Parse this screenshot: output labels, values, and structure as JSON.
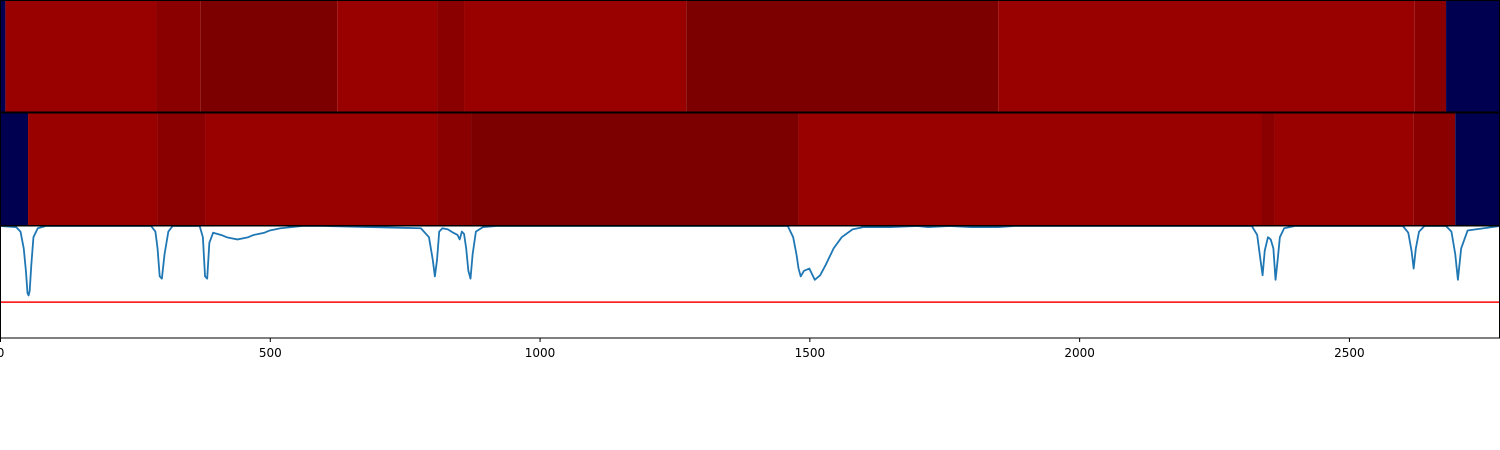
{
  "chart_data": [
    {
      "type": "heatmap",
      "panel": "top",
      "xlim": [
        0,
        2780
      ],
      "bands": [
        {
          "start": 0,
          "end": 10,
          "level": "blue"
        },
        {
          "start": 10,
          "end": 290,
          "level": "red"
        },
        {
          "start": 290,
          "end": 372,
          "level": "mid"
        },
        {
          "start": 372,
          "end": 625,
          "level": "dark"
        },
        {
          "start": 625,
          "end": 810,
          "level": "red"
        },
        {
          "start": 810,
          "end": 860,
          "level": "mid"
        },
        {
          "start": 860,
          "end": 1272,
          "level": "red"
        },
        {
          "start": 1272,
          "end": 1850,
          "level": "dark"
        },
        {
          "start": 1850,
          "end": 2622,
          "level": "red"
        },
        {
          "start": 2622,
          "end": 2680,
          "level": "mid"
        },
        {
          "start": 2680,
          "end": 2780,
          "level": "blue"
        }
      ]
    },
    {
      "type": "heatmap",
      "panel": "middle",
      "xlim": [
        0,
        2780
      ],
      "bands": [
        {
          "start": 0,
          "end": 52,
          "level": "blue"
        },
        {
          "start": 52,
          "end": 292,
          "level": "red"
        },
        {
          "start": 292,
          "end": 380,
          "level": "mid"
        },
        {
          "start": 380,
          "end": 810,
          "level": "red"
        },
        {
          "start": 810,
          "end": 873,
          "level": "mid"
        },
        {
          "start": 873,
          "end": 1480,
          "level": "dark"
        },
        {
          "start": 1480,
          "end": 2338,
          "level": "red"
        },
        {
          "start": 2338,
          "end": 2362,
          "level": "mid"
        },
        {
          "start": 2362,
          "end": 2620,
          "level": "red"
        },
        {
          "start": 2620,
          "end": 2697,
          "level": "mid"
        },
        {
          "start": 2697,
          "end": 2780,
          "level": "blue"
        }
      ]
    },
    {
      "type": "line",
      "panel": "bottom",
      "xlim": [
        0,
        2780
      ],
      "ylim": [
        -1.0,
        0.0
      ],
      "grid": false,
      "xticks": [
        0,
        500,
        1000,
        1500,
        2000,
        2500
      ],
      "threshold": -0.68,
      "series": [
        {
          "x": [
            0,
            30,
            38,
            44,
            48,
            51,
            53,
            55,
            58,
            62,
            70,
            85,
            280,
            288,
            292,
            296,
            300,
            305,
            312,
            320,
            370,
            376,
            380,
            384,
            388,
            395,
            410,
            420,
            430,
            440,
            450,
            460,
            470,
            480,
            490,
            500,
            520,
            540,
            560,
            600,
            780,
            795,
            802,
            806,
            810,
            814,
            820,
            830,
            840,
            848,
            852,
            856,
            860,
            864,
            868,
            872,
            876,
            882,
            895,
            920,
            1460,
            1470,
            1476,
            1480,
            1484,
            1490,
            1500,
            1510,
            1520,
            1530,
            1545,
            1560,
            1580,
            1600,
            1650,
            1700,
            1720,
            1760,
            1800,
            1850,
            1880,
            2000,
            2320,
            2330,
            2336,
            2340,
            2344,
            2350,
            2355,
            2360,
            2364,
            2368,
            2372,
            2380,
            2400,
            2600,
            2610,
            2616,
            2620,
            2624,
            2630,
            2640,
            2680,
            2690,
            2697,
            2702,
            2708,
            2720,
            2780
          ],
          "y": [
            0,
            -0.01,
            -0.05,
            -0.2,
            -0.4,
            -0.6,
            -0.62,
            -0.58,
            -0.35,
            -0.1,
            -0.02,
            0,
            0,
            -0.05,
            -0.2,
            -0.45,
            -0.47,
            -0.25,
            -0.05,
            0,
            0,
            -0.1,
            -0.45,
            -0.47,
            -0.15,
            -0.06,
            -0.08,
            -0.1,
            -0.11,
            -0.12,
            -0.11,
            -0.1,
            -0.08,
            -0.07,
            -0.06,
            -0.04,
            -0.02,
            -0.01,
            0,
            0,
            -0.02,
            -0.1,
            -0.3,
            -0.45,
            -0.3,
            -0.05,
            -0.02,
            -0.03,
            -0.06,
            -0.08,
            -0.12,
            -0.05,
            -0.07,
            -0.2,
            -0.4,
            -0.47,
            -0.25,
            -0.05,
            -0.01,
            0,
            0,
            -0.1,
            -0.25,
            -0.38,
            -0.45,
            -0.4,
            -0.38,
            -0.48,
            -0.44,
            -0.35,
            -0.2,
            -0.1,
            -0.03,
            -0.01,
            -0.01,
            0,
            -0.01,
            0,
            -0.01,
            -0.01,
            0,
            0,
            0,
            -0.08,
            -0.3,
            -0.44,
            -0.22,
            -0.1,
            -0.12,
            -0.2,
            -0.48,
            -0.3,
            -0.1,
            -0.02,
            0,
            0,
            -0.06,
            -0.22,
            -0.38,
            -0.2,
            -0.05,
            0,
            0,
            -0.05,
            -0.25,
            -0.48,
            -0.2,
            -0.04,
            0
          ]
        }
      ]
    }
  ],
  "colors": {
    "blue": "#000050",
    "red": "#990000",
    "mid": "#8a0000",
    "dark": "#7c0000",
    "line": "#1f77b4",
    "threshold": "#ff0000",
    "axis": "#000000",
    "background": "#ffffff"
  }
}
